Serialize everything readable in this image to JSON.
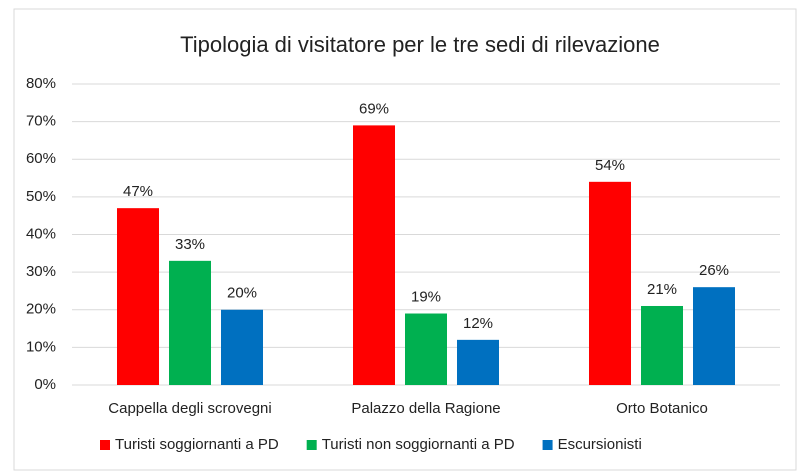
{
  "chart_data": {
    "type": "bar",
    "title": "Tipologia di visitatore per le tre sedi di rilevazione",
    "categories": [
      "Cappella degli scrovegni",
      "Palazzo della Ragione",
      "Orto Botanico"
    ],
    "series": [
      {
        "name": "Turisti soggiornanti a PD",
        "color": "#ff0000",
        "values": [
          47,
          69,
          54
        ],
        "value_labels": [
          "47%",
          "69%",
          "54%"
        ]
      },
      {
        "name": "Turisti non soggiornanti a PD",
        "color": "#00b050",
        "values": [
          33,
          19,
          21
        ],
        "value_labels": [
          "33%",
          "19%",
          "21%"
        ]
      },
      {
        "name": "Escursionisti",
        "color": "#0070c0",
        "values": [
          20,
          12,
          26
        ],
        "value_labels": [
          "20%",
          "12%",
          "26%"
        ]
      }
    ],
    "ylim": [
      0,
      80
    ],
    "yticks": [
      {
        "value": 0,
        "label": "0%"
      },
      {
        "value": 10,
        "label": "10%"
      },
      {
        "value": 20,
        "label": "20%"
      },
      {
        "value": 30,
        "label": "30%"
      },
      {
        "value": 40,
        "label": "40%"
      },
      {
        "value": 50,
        "label": "50%"
      },
      {
        "value": 60,
        "label": "60%"
      },
      {
        "value": 70,
        "label": "70%"
      },
      {
        "value": 80,
        "label": "80%"
      }
    ],
    "grid": true,
    "legend": "bottom"
  }
}
